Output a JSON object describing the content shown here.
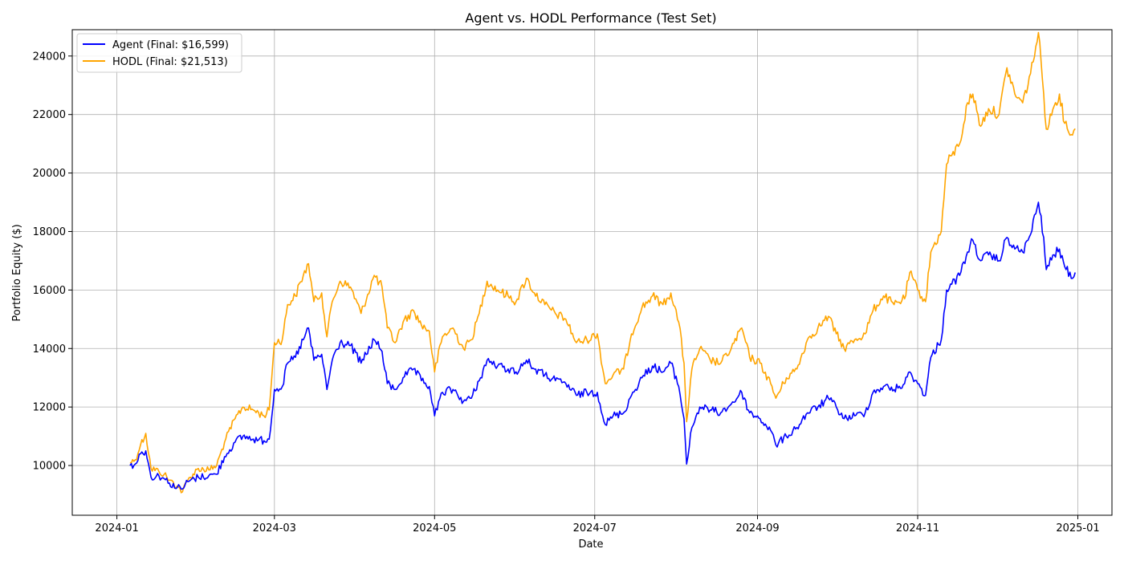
{
  "chart_data": {
    "type": "line",
    "title": "Agent vs. HODL Performance (Test Set)",
    "xlabel": "Date",
    "ylabel": "Portfolio Equity ($)",
    "x_ticks": [
      "2024-01",
      "2024-03",
      "2024-05",
      "2024-07",
      "2024-09",
      "2024-11",
      "2025-01"
    ],
    "y_ticks": [
      10000,
      12000,
      14000,
      16000,
      18000,
      20000,
      22000,
      24000
    ],
    "xlim": [
      "2023-12-15",
      "2025-01-14"
    ],
    "ylim": [
      8300,
      24900
    ],
    "grid": true,
    "legend": "upper-left",
    "series": [
      {
        "name": "Agent (Final: $16,599)",
        "color": "#0000ff",
        "points": [
          [
            "2024-01-06",
            10000
          ],
          [
            "2024-01-08",
            10050
          ],
          [
            "2024-01-10",
            10400
          ],
          [
            "2024-01-12",
            10500
          ],
          [
            "2024-01-14",
            9600
          ],
          [
            "2024-01-17",
            9650
          ],
          [
            "2024-01-19",
            9550
          ],
          [
            "2024-01-21",
            9400
          ],
          [
            "2024-01-24",
            9250
          ],
          [
            "2024-01-26",
            9200
          ],
          [
            "2024-01-28",
            9450
          ],
          [
            "2024-02-01",
            9600
          ],
          [
            "2024-02-05",
            9650
          ],
          [
            "2024-02-08",
            9700
          ],
          [
            "2024-02-11",
            10300
          ],
          [
            "2024-02-15",
            10800
          ],
          [
            "2024-02-18",
            11000
          ],
          [
            "2024-02-22",
            10900
          ],
          [
            "2024-02-26",
            10850
          ],
          [
            "2024-02-28",
            10900
          ],
          [
            "2024-03-01",
            12600
          ],
          [
            "2024-03-04",
            12700
          ],
          [
            "2024-03-06",
            13500
          ],
          [
            "2024-03-09",
            13700
          ],
          [
            "2024-03-12",
            14300
          ],
          [
            "2024-03-14",
            14700
          ],
          [
            "2024-03-16",
            13600
          ],
          [
            "2024-03-19",
            13800
          ],
          [
            "2024-03-21",
            12600
          ],
          [
            "2024-03-23",
            13600
          ],
          [
            "2024-03-26",
            14200
          ],
          [
            "2024-03-30",
            14100
          ],
          [
            "2024-04-03",
            13500
          ],
          [
            "2024-04-08",
            14300
          ],
          [
            "2024-04-11",
            13900
          ],
          [
            "2024-04-13",
            12800
          ],
          [
            "2024-04-16",
            12600
          ],
          [
            "2024-04-19",
            13000
          ],
          [
            "2024-04-23",
            13300
          ],
          [
            "2024-04-26",
            12900
          ],
          [
            "2024-04-29",
            12700
          ],
          [
            "2024-05-01",
            11700
          ],
          [
            "2024-05-04",
            12500
          ],
          [
            "2024-05-08",
            12600
          ],
          [
            "2024-05-12",
            12200
          ],
          [
            "2024-05-15",
            12300
          ],
          [
            "2024-05-18",
            12900
          ],
          [
            "2024-05-21",
            13600
          ],
          [
            "2024-05-25",
            13400
          ],
          [
            "2024-05-29",
            13300
          ],
          [
            "2024-06-01",
            13200
          ],
          [
            "2024-06-05",
            13600
          ],
          [
            "2024-06-08",
            13300
          ],
          [
            "2024-06-12",
            13100
          ],
          [
            "2024-06-16",
            12900
          ],
          [
            "2024-06-20",
            12800
          ],
          [
            "2024-06-24",
            12400
          ],
          [
            "2024-06-28",
            12500
          ],
          [
            "2024-07-02",
            12500
          ],
          [
            "2024-07-05",
            11400
          ],
          [
            "2024-07-08",
            11700
          ],
          [
            "2024-07-12",
            11800
          ],
          [
            "2024-07-15",
            12400
          ],
          [
            "2024-07-19",
            13000
          ],
          [
            "2024-07-23",
            13400
          ],
          [
            "2024-07-27",
            13200
          ],
          [
            "2024-07-30",
            13500
          ],
          [
            "2024-08-02",
            12700
          ],
          [
            "2024-08-04",
            11600
          ],
          [
            "2024-08-05",
            10050
          ],
          [
            "2024-08-07",
            11300
          ],
          [
            "2024-08-10",
            12000
          ],
          [
            "2024-08-14",
            11900
          ],
          [
            "2024-08-18",
            11800
          ],
          [
            "2024-08-22",
            12100
          ],
          [
            "2024-08-26",
            12500
          ],
          [
            "2024-08-29",
            11800
          ],
          [
            "2024-09-02",
            11600
          ],
          [
            "2024-09-06",
            11200
          ],
          [
            "2024-09-08",
            10700
          ],
          [
            "2024-09-12",
            11000
          ],
          [
            "2024-09-16",
            11300
          ],
          [
            "2024-09-20",
            11800
          ],
          [
            "2024-09-24",
            12000
          ],
          [
            "2024-09-28",
            12300
          ],
          [
            "2024-10-01",
            12000
          ],
          [
            "2024-10-04",
            11600
          ],
          [
            "2024-10-08",
            11700
          ],
          [
            "2024-10-12",
            11800
          ],
          [
            "2024-10-15",
            12500
          ],
          [
            "2024-10-19",
            12700
          ],
          [
            "2024-10-23",
            12600
          ],
          [
            "2024-10-27",
            12800
          ],
          [
            "2024-10-29",
            13200
          ],
          [
            "2024-11-01",
            12800
          ],
          [
            "2024-11-04",
            12400
          ],
          [
            "2024-11-06",
            13700
          ],
          [
            "2024-11-10",
            14300
          ],
          [
            "2024-11-12",
            16000
          ],
          [
            "2024-11-14",
            16200
          ],
          [
            "2024-11-17",
            16500
          ],
          [
            "2024-11-20",
            17300
          ],
          [
            "2024-11-22",
            17700
          ],
          [
            "2024-11-25",
            17000
          ],
          [
            "2024-11-28",
            17200
          ],
          [
            "2024-12-02",
            17000
          ],
          [
            "2024-12-05",
            17800
          ],
          [
            "2024-12-08",
            17400
          ],
          [
            "2024-12-11",
            17300
          ],
          [
            "2024-12-14",
            17900
          ],
          [
            "2024-12-17",
            19000
          ],
          [
            "2024-12-19",
            17800
          ],
          [
            "2024-12-20",
            16700
          ],
          [
            "2024-12-23",
            17200
          ],
          [
            "2024-12-25",
            17400
          ],
          [
            "2024-12-27",
            16800
          ],
          [
            "2024-12-30",
            16400
          ],
          [
            "2024-12-31",
            16599
          ]
        ]
      },
      {
        "name": "HODL (Final: $21,513)",
        "color": "#ffa500",
        "points": [
          [
            "2024-01-06",
            10100
          ],
          [
            "2024-01-08",
            10200
          ],
          [
            "2024-01-10",
            10700
          ],
          [
            "2024-01-12",
            11100
          ],
          [
            "2024-01-14",
            9900
          ],
          [
            "2024-01-17",
            9800
          ],
          [
            "2024-01-19",
            9700
          ],
          [
            "2024-01-21",
            9500
          ],
          [
            "2024-01-24",
            9300
          ],
          [
            "2024-01-26",
            9100
          ],
          [
            "2024-01-28",
            9500
          ],
          [
            "2024-02-01",
            9900
          ],
          [
            "2024-02-05",
            9850
          ],
          [
            "2024-02-08",
            10000
          ],
          [
            "2024-02-11",
            10800
          ],
          [
            "2024-02-15",
            11600
          ],
          [
            "2024-02-18",
            12000
          ],
          [
            "2024-02-22",
            11900
          ],
          [
            "2024-02-26",
            11700
          ],
          [
            "2024-02-28",
            11900
          ],
          [
            "2024-03-01",
            14200
          ],
          [
            "2024-03-04",
            14300
          ],
          [
            "2024-03-06",
            15500
          ],
          [
            "2024-03-09",
            15800
          ],
          [
            "2024-03-12",
            16500
          ],
          [
            "2024-03-14",
            16900
          ],
          [
            "2024-03-16",
            15600
          ],
          [
            "2024-03-19",
            15900
          ],
          [
            "2024-03-21",
            14400
          ],
          [
            "2024-03-23",
            15600
          ],
          [
            "2024-03-26",
            16300
          ],
          [
            "2024-03-30",
            16100
          ],
          [
            "2024-04-03",
            15200
          ],
          [
            "2024-04-08",
            16500
          ],
          [
            "2024-04-11",
            16100
          ],
          [
            "2024-04-13",
            14700
          ],
          [
            "2024-04-16",
            14200
          ],
          [
            "2024-04-19",
            14900
          ],
          [
            "2024-04-23",
            15300
          ],
          [
            "2024-04-26",
            14800
          ],
          [
            "2024-04-29",
            14600
          ],
          [
            "2024-05-01",
            13200
          ],
          [
            "2024-05-04",
            14400
          ],
          [
            "2024-05-08",
            14700
          ],
          [
            "2024-05-12",
            14000
          ],
          [
            "2024-05-15",
            14300
          ],
          [
            "2024-05-18",
            15200
          ],
          [
            "2024-05-21",
            16300
          ],
          [
            "2024-05-25",
            16000
          ],
          [
            "2024-05-29",
            15800
          ],
          [
            "2024-06-01",
            15600
          ],
          [
            "2024-06-05",
            16400
          ],
          [
            "2024-06-08",
            15900
          ],
          [
            "2024-06-12",
            15500
          ],
          [
            "2024-06-16",
            15200
          ],
          [
            "2024-06-20",
            15000
          ],
          [
            "2024-06-24",
            14200
          ],
          [
            "2024-06-28",
            14300
          ],
          [
            "2024-07-02",
            14500
          ],
          [
            "2024-07-05",
            12800
          ],
          [
            "2024-07-08",
            13100
          ],
          [
            "2024-07-12",
            13300
          ],
          [
            "2024-07-15",
            14500
          ],
          [
            "2024-07-19",
            15400
          ],
          [
            "2024-07-23",
            15800
          ],
          [
            "2024-07-27",
            15500
          ],
          [
            "2024-07-30",
            15900
          ],
          [
            "2024-08-02",
            14900
          ],
          [
            "2024-08-04",
            13500
          ],
          [
            "2024-08-05",
            11500
          ],
          [
            "2024-08-07",
            13300
          ],
          [
            "2024-08-10",
            14000
          ],
          [
            "2024-08-14",
            13600
          ],
          [
            "2024-08-18",
            13500
          ],
          [
            "2024-08-22",
            14000
          ],
          [
            "2024-08-26",
            14700
          ],
          [
            "2024-08-29",
            13700
          ],
          [
            "2024-09-02",
            13500
          ],
          [
            "2024-09-06",
            12800
          ],
          [
            "2024-09-08",
            12300
          ],
          [
            "2024-09-12",
            13000
          ],
          [
            "2024-09-16",
            13300
          ],
          [
            "2024-09-20",
            14300
          ],
          [
            "2024-09-24",
            14700
          ],
          [
            "2024-09-28",
            15100
          ],
          [
            "2024-10-01",
            14500
          ],
          [
            "2024-10-04",
            14000
          ],
          [
            "2024-10-08",
            14300
          ],
          [
            "2024-10-12",
            14500
          ],
          [
            "2024-10-15",
            15300
          ],
          [
            "2024-10-19",
            15800
          ],
          [
            "2024-10-23",
            15500
          ],
          [
            "2024-10-27",
            15700
          ],
          [
            "2024-10-29",
            16600
          ],
          [
            "2024-11-01",
            16000
          ],
          [
            "2024-11-04",
            15600
          ],
          [
            "2024-11-06",
            17300
          ],
          [
            "2024-11-10",
            18000
          ],
          [
            "2024-11-12",
            20300
          ],
          [
            "2024-11-14",
            20600
          ],
          [
            "2024-11-17",
            21000
          ],
          [
            "2024-11-20",
            22400
          ],
          [
            "2024-11-22",
            22700
          ],
          [
            "2024-11-25",
            21600
          ],
          [
            "2024-11-28",
            22200
          ],
          [
            "2024-12-02",
            22000
          ],
          [
            "2024-12-05",
            23600
          ],
          [
            "2024-12-08",
            22700
          ],
          [
            "2024-12-11",
            22400
          ],
          [
            "2024-12-14",
            23400
          ],
          [
            "2024-12-17",
            24800
          ],
          [
            "2024-12-19",
            22700
          ],
          [
            "2024-12-20",
            21500
          ],
          [
            "2024-12-23",
            22300
          ],
          [
            "2024-12-25",
            22700
          ],
          [
            "2024-12-27",
            21700
          ],
          [
            "2024-12-30",
            21300
          ],
          [
            "2024-12-31",
            21513
          ]
        ]
      }
    ]
  }
}
